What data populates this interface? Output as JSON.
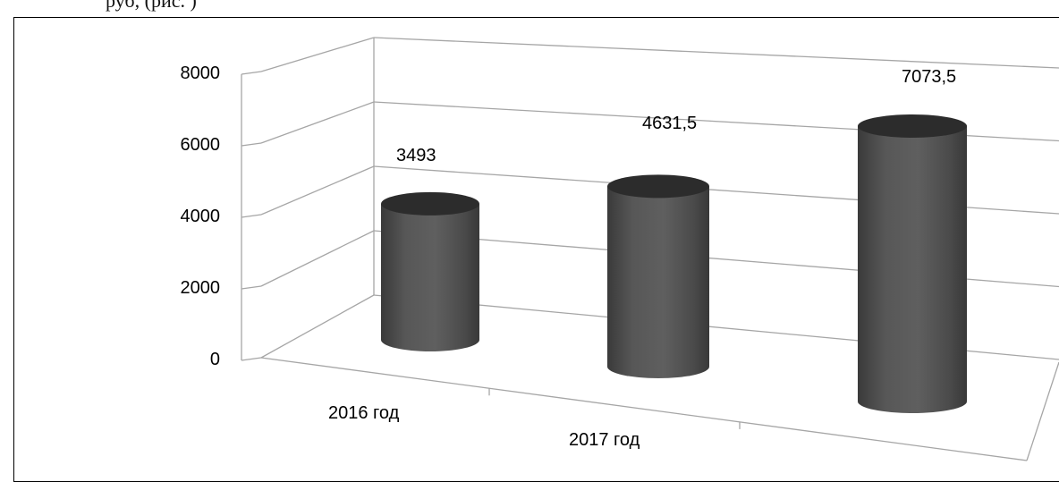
{
  "page": {
    "clipped_heading": "руб, (рис. )"
  },
  "chart_data": {
    "type": "bar",
    "style": "3d-cylinder",
    "categories": [
      "2016 год",
      "2017 год",
      ""
    ],
    "visible_category_labels": [
      "2016 год",
      "2017 год"
    ],
    "values": [
      3493,
      4631.5,
      7073.5
    ],
    "data_labels": [
      "3493",
      "4631,5",
      "7073,5"
    ],
    "y_ticks": [
      "0",
      "2000",
      "4000",
      "6000",
      "8000"
    ],
    "ylim": [
      0,
      8000
    ],
    "title": "",
    "xlabel": "",
    "ylabel": "",
    "grid": true,
    "legend": "none",
    "colors": {
      "bar": "#4a4a4a",
      "bar_top": "#2c2c2c",
      "grid": "#a6a6a6",
      "frame": "#000000"
    }
  }
}
